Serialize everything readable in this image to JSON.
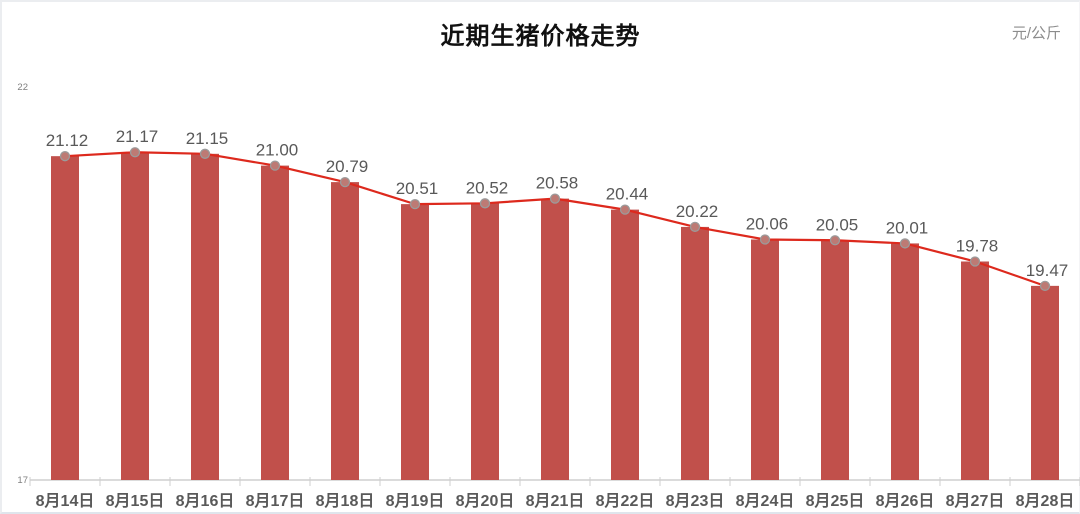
{
  "chart_data": {
    "type": "bar",
    "overlay": "line",
    "title": "近期生猪价格走势",
    "unit": "元/公斤",
    "categories": [
      "8月14日",
      "8月15日",
      "8月16日",
      "8月17日",
      "8月18日",
      "8月19日",
      "8月20日",
      "8月21日",
      "8月22日",
      "8月23日",
      "8月24日",
      "8月25日",
      "8月26日",
      "8月27日",
      "8月28日"
    ],
    "values": [
      21.12,
      21.17,
      21.15,
      21.0,
      20.79,
      20.51,
      20.52,
      20.58,
      20.44,
      20.22,
      20.06,
      20.05,
      20.01,
      19.78,
      19.47
    ],
    "xlabel": "",
    "ylabel": "",
    "ylim": [
      17,
      22
    ],
    "yticks": [
      17,
      22
    ],
    "grid": false,
    "legend": false,
    "colors": {
      "bar": "#c1504b",
      "line": "#dd291d",
      "marker_fill": "#bd7a74",
      "marker_stroke": "#9b9b9b",
      "data_label": "#595959",
      "x_label": "#595959",
      "tick_label": "#7f7f7f",
      "axis_line": "#cfcfcf",
      "title": "#111111",
      "unit": "#8c8c8c"
    }
  }
}
